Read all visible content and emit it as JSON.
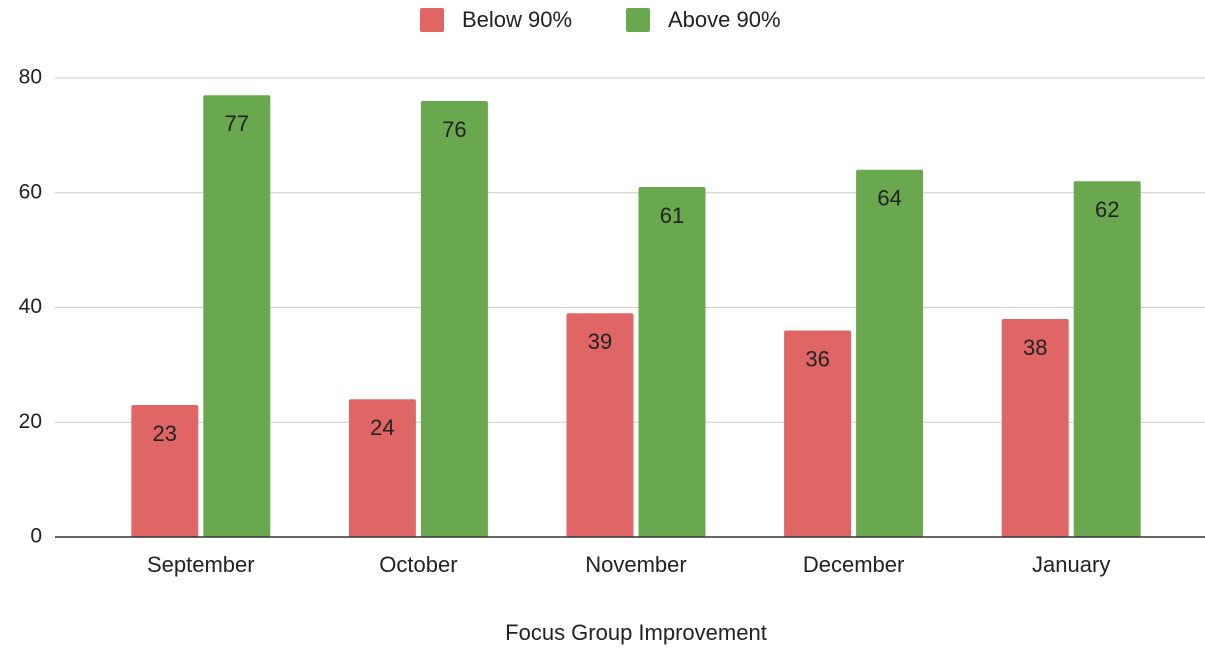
{
  "chart_data": {
    "type": "bar",
    "x_label": "Focus Group Improvement",
    "categories": [
      "September",
      "October",
      "November",
      "December",
      "January"
    ],
    "series": [
      {
        "name": "Below 90%",
        "color": "#e06666",
        "values": [
          23,
          24,
          39,
          36,
          38
        ]
      },
      {
        "name": "Above 90%",
        "color": "#6aa84f",
        "values": [
          77,
          76,
          61,
          64,
          62
        ]
      }
    ],
    "ylim": [
      0,
      80
    ],
    "yticks": [
      0,
      20,
      40,
      60,
      80
    ],
    "grid": true,
    "legend": "top"
  }
}
